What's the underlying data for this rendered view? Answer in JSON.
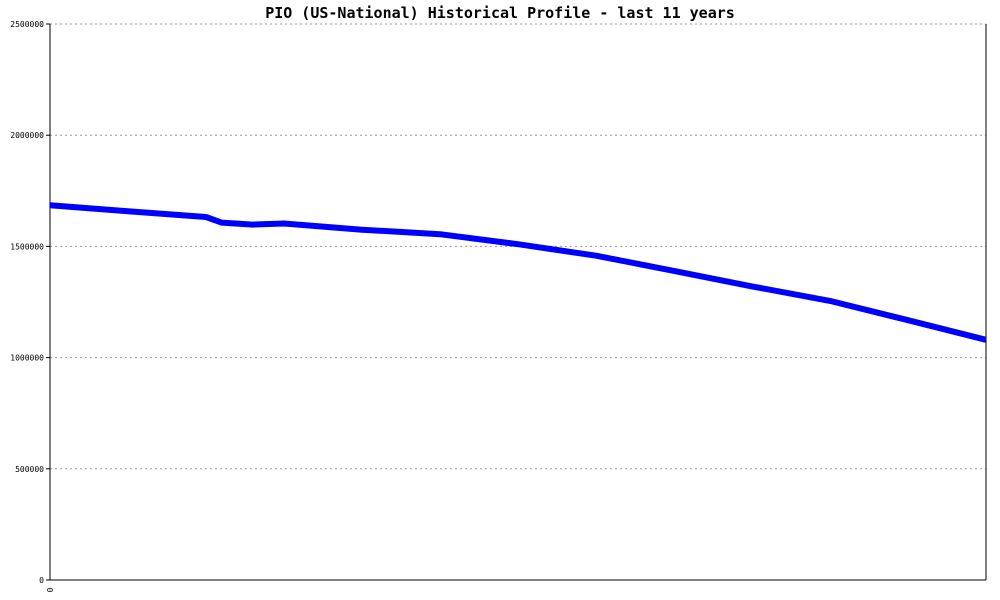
{
  "chart_data": {
    "type": "line",
    "title": "PIO (US-National) Historical Profile - last 11 years",
    "xlabel": "",
    "ylabel": "",
    "x_tick_labels": [
      "0"
    ],
    "y_ticks": [
      0,
      500000,
      1000000,
      1500000,
      2000000,
      2500000
    ],
    "y_tick_labels": [
      "0",
      "500000",
      "1000000",
      "1500000",
      "2000000",
      "2500000"
    ],
    "ylim": [
      0,
      2500000
    ],
    "xlim": [
      0,
      12
    ],
    "grid": "horizontal dotted",
    "series": [
      {
        "color": "#0000ff",
        "x": [
          0,
          1,
          2,
          2.2,
          2.6,
          3,
          4,
          5,
          6,
          7,
          8,
          9,
          10,
          11,
          12
        ],
        "y": [
          1685000,
          1658000,
          1632000,
          1607000,
          1598000,
          1603000,
          1575000,
          1555000,
          1510000,
          1458000,
          1390000,
          1320000,
          1255000,
          1168000,
          1080000
        ]
      }
    ]
  }
}
